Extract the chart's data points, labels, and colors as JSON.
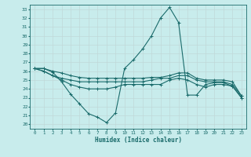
{
  "xlabel": "Humidex (Indice chaleur)",
  "ylabel": "",
  "bg_color": "#c8ecec",
  "grid_color": "#b0d8d8",
  "line_color": "#1a6b6b",
  "xlim": [
    -0.5,
    23.5
  ],
  "ylim": [
    19.5,
    33.5
  ],
  "xticks": [
    0,
    1,
    2,
    3,
    4,
    5,
    6,
    7,
    8,
    9,
    10,
    11,
    12,
    13,
    14,
    15,
    16,
    17,
    18,
    19,
    20,
    21,
    22,
    23
  ],
  "yticks": [
    20,
    21,
    22,
    23,
    24,
    25,
    26,
    27,
    28,
    29,
    30,
    31,
    32,
    33
  ],
  "line1_x": [
    0,
    1,
    2,
    3,
    4,
    5,
    6,
    7,
    8,
    9,
    10,
    11,
    12,
    13,
    14,
    15,
    16,
    17,
    18,
    19,
    20,
    21,
    22,
    23
  ],
  "line1_y": [
    26.3,
    26.3,
    25.9,
    24.8,
    23.4,
    22.3,
    21.2,
    20.8,
    20.2,
    21.3,
    26.3,
    27.3,
    28.5,
    30.0,
    32.0,
    33.2,
    31.5,
    23.3,
    23.3,
    24.5,
    24.7,
    24.7,
    24.3,
    23.0
  ],
  "line2_x": [
    0,
    1,
    2,
    3,
    4,
    5,
    6,
    7,
    8,
    9,
    10,
    11,
    12,
    13,
    14,
    15,
    16,
    17,
    18,
    19,
    20,
    21,
    22,
    23
  ],
  "line2_y": [
    26.3,
    26.0,
    25.5,
    25.0,
    24.5,
    24.2,
    24.0,
    24.0,
    24.0,
    24.2,
    24.5,
    24.5,
    24.5,
    24.5,
    24.5,
    25.0,
    25.2,
    25.0,
    24.5,
    24.2,
    24.5,
    24.5,
    24.3,
    23.0
  ],
  "line3_x": [
    0,
    1,
    2,
    3,
    4,
    5,
    6,
    7,
    8,
    9,
    10,
    11,
    12,
    13,
    14,
    15,
    16,
    17,
    18,
    19,
    20,
    21,
    22,
    23
  ],
  "line3_y": [
    26.3,
    26.0,
    25.5,
    25.2,
    25.0,
    24.8,
    24.8,
    24.8,
    24.8,
    24.8,
    24.8,
    24.8,
    24.8,
    25.0,
    25.2,
    25.2,
    25.5,
    25.5,
    25.0,
    24.8,
    24.8,
    24.8,
    24.5,
    23.2
  ],
  "line4_x": [
    0,
    1,
    2,
    3,
    4,
    5,
    6,
    7,
    8,
    9,
    10,
    11,
    12,
    13,
    14,
    15,
    16,
    17,
    18,
    19,
    20,
    21,
    22,
    23
  ],
  "line4_y": [
    26.3,
    26.3,
    26.0,
    25.8,
    25.5,
    25.3,
    25.2,
    25.2,
    25.2,
    25.2,
    25.2,
    25.2,
    25.2,
    25.3,
    25.3,
    25.5,
    25.8,
    25.8,
    25.2,
    25.0,
    25.0,
    25.0,
    24.8,
    23.2
  ]
}
